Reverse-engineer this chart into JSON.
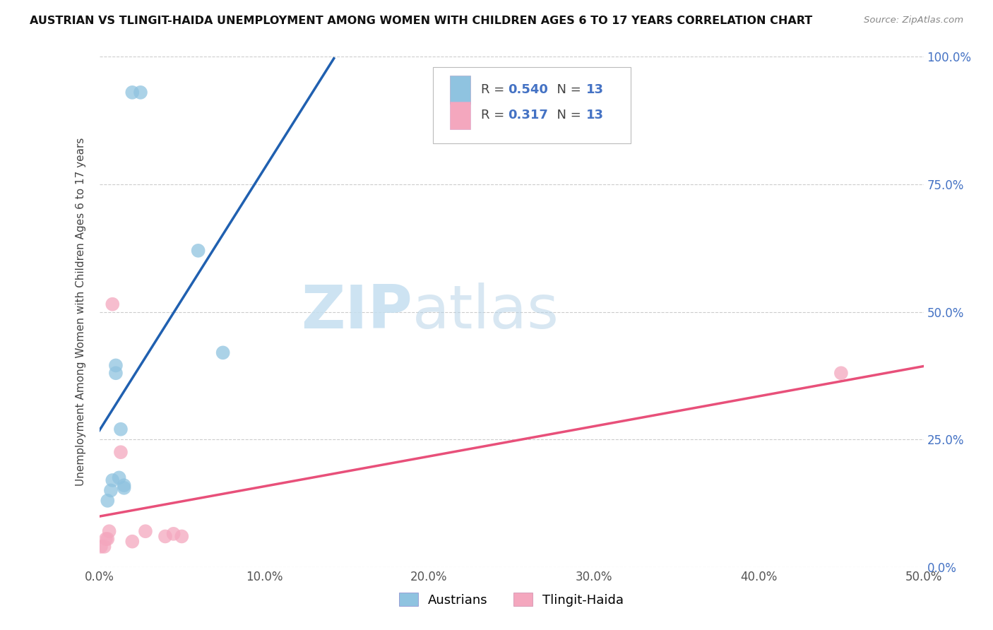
{
  "title": "AUSTRIAN VS TLINGIT-HAIDA UNEMPLOYMENT AMONG WOMEN WITH CHILDREN AGES 6 TO 17 YEARS CORRELATION CHART",
  "source": "Source: ZipAtlas.com",
  "ylabel": "Unemployment Among Women with Children Ages 6 to 17 years",
  "xlim": [
    0.0,
    0.5
  ],
  "ylim": [
    0.0,
    1.0
  ],
  "legend_label1": "Austrians",
  "legend_label2": "Tlingit-Haida",
  "R1": "0.540",
  "N1": "13",
  "R2": "0.317",
  "N2": "13",
  "color_austrians": "#8fc3e0",
  "color_tlingit": "#f4a7be",
  "line_color_austrians": "#2060b0",
  "line_color_tlingit": "#e8507a",
  "watermark_zip": "ZIP",
  "watermark_atlas": "atlas",
  "austrians_x": [
    0.005,
    0.007,
    0.008,
    0.01,
    0.01,
    0.012,
    0.013,
    0.015,
    0.015,
    0.02,
    0.025,
    0.06,
    0.075
  ],
  "austrians_y": [
    0.13,
    0.15,
    0.17,
    0.38,
    0.395,
    0.175,
    0.27,
    0.16,
    0.155,
    0.93,
    0.93,
    0.62,
    0.42
  ],
  "tlingit_x": [
    0.001,
    0.003,
    0.004,
    0.005,
    0.006,
    0.008,
    0.013,
    0.02,
    0.028,
    0.04,
    0.045,
    0.05,
    0.45
  ],
  "tlingit_y": [
    0.04,
    0.04,
    0.055,
    0.055,
    0.07,
    0.515,
    0.225,
    0.05,
    0.07,
    0.06,
    0.065,
    0.06,
    0.38
  ]
}
